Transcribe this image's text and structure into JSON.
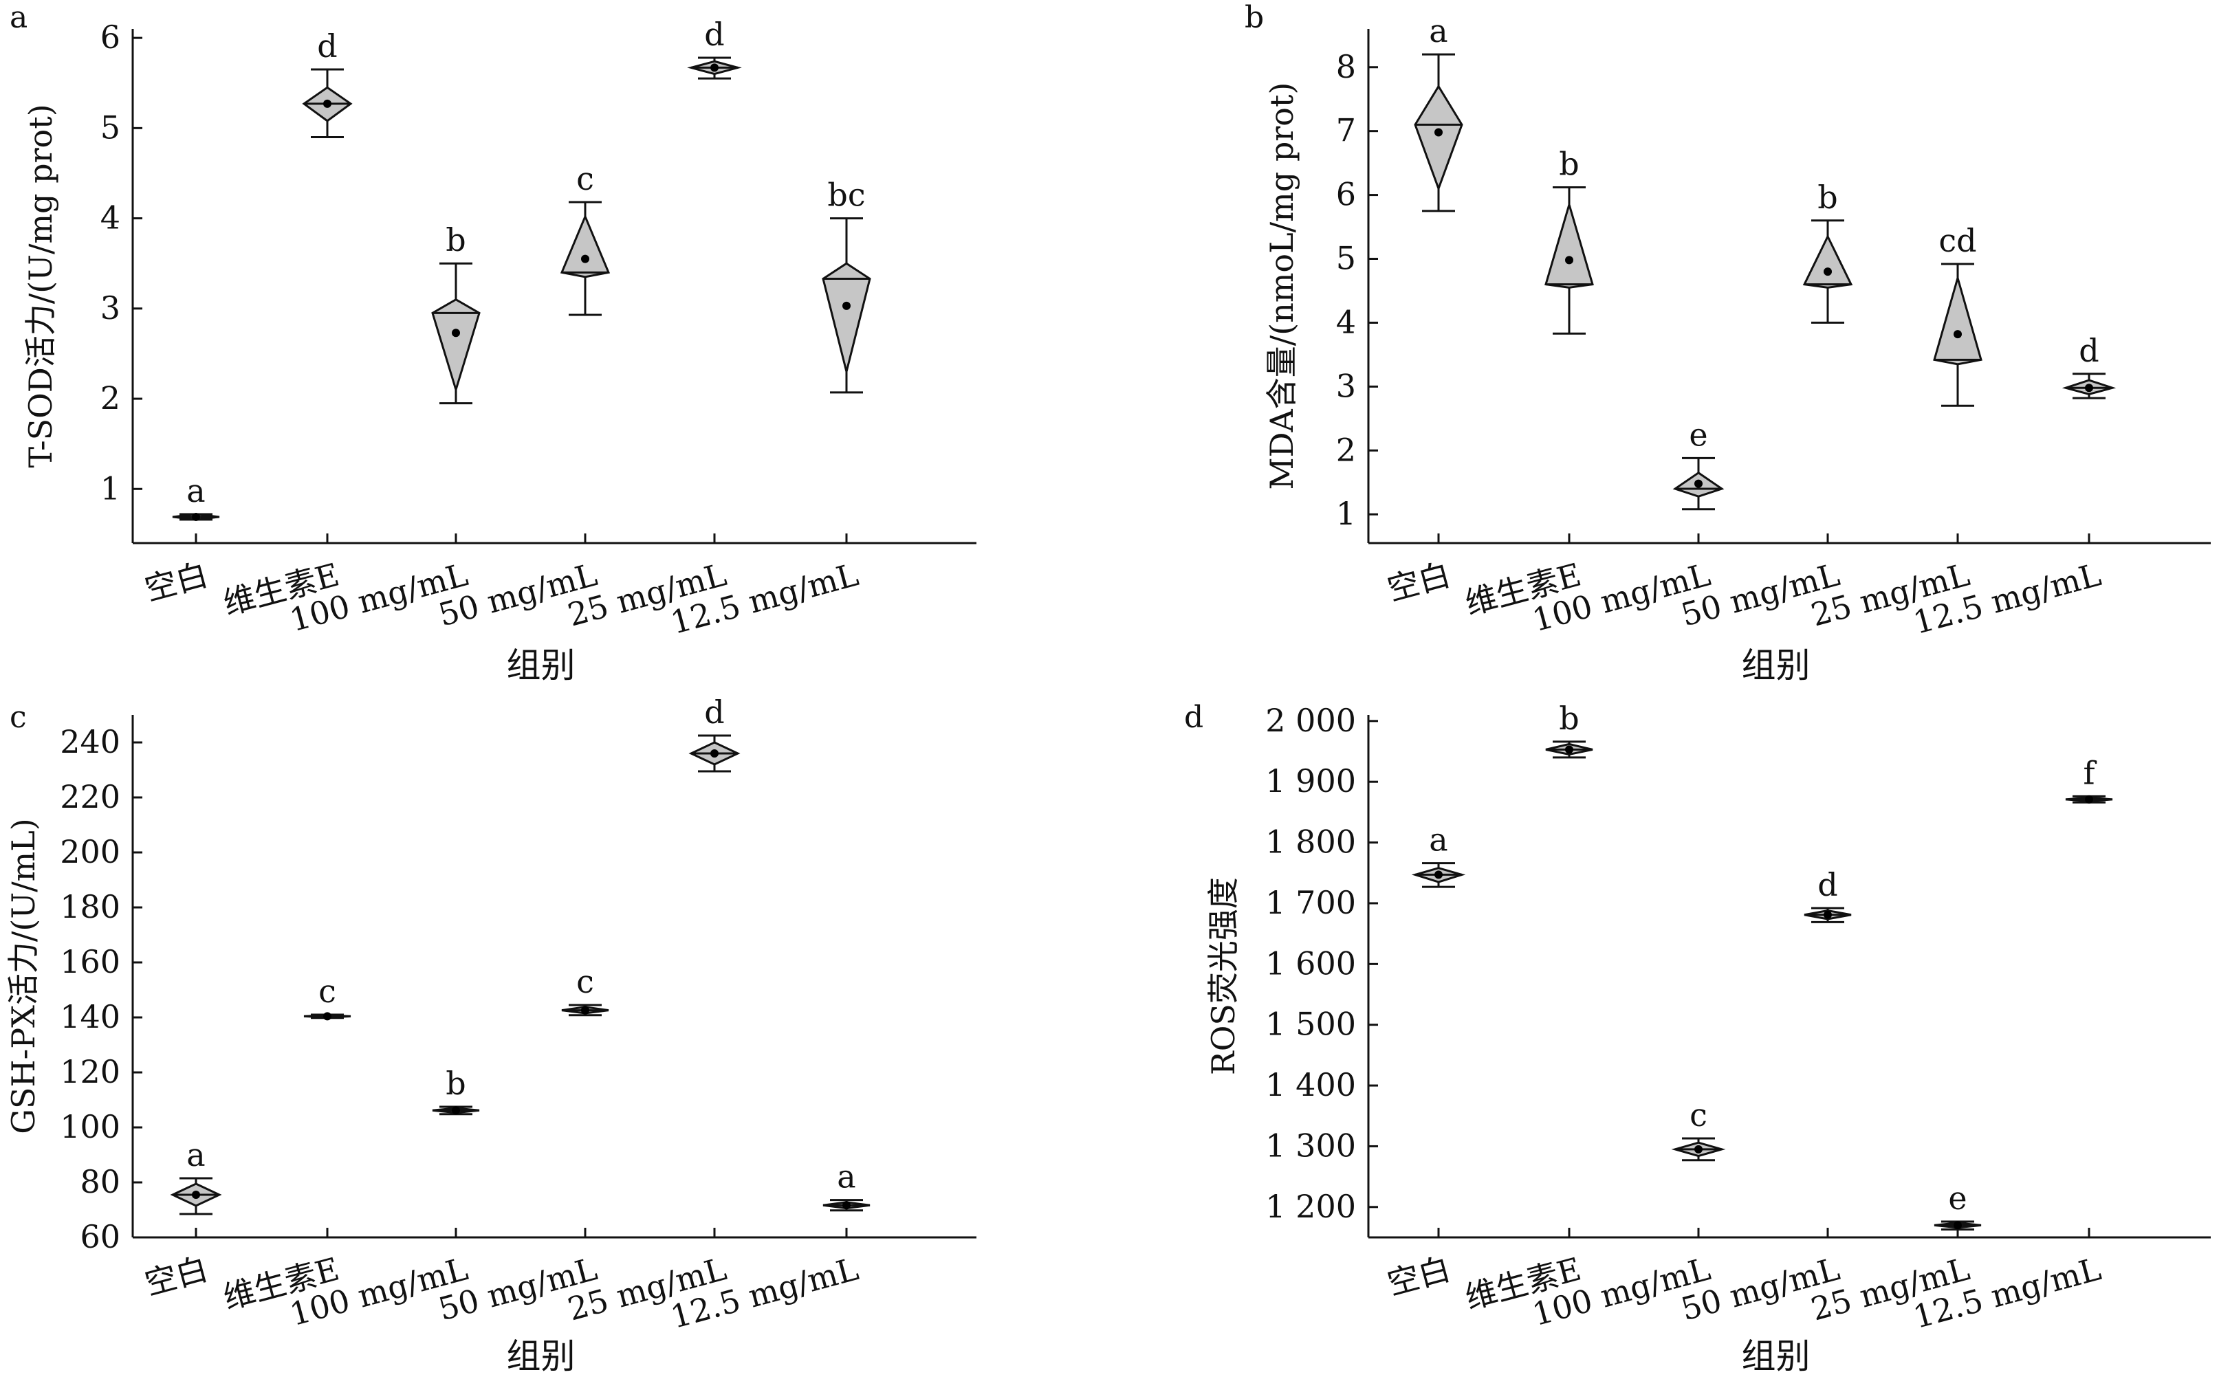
{
  "chart_data": [
    {
      "type": "violin",
      "panel": "a",
      "ylabel": "T-SOD活力/(U/mg prot)",
      "xlabel": "组别",
      "categories": [
        "空白",
        "维生素E",
        "100 mg/mL",
        "50 mg/mL",
        "25 mg/mL",
        "12.5 mg/mL"
      ],
      "ylim": [
        0.4,
        6.1
      ],
      "yticks": [
        {
          "v": 1,
          "t": "1"
        },
        {
          "v": 2,
          "t": "2"
        },
        {
          "v": 3,
          "t": "3"
        },
        {
          "v": 4,
          "t": "4"
        },
        {
          "v": 5,
          "t": "5"
        },
        {
          "v": 6,
          "t": "6"
        }
      ],
      "groups": [
        {
          "min": 0.66,
          "max": 0.72,
          "lo": 0.66,
          "hi": 0.72,
          "median": 0.69,
          "mean": 0.69,
          "sig": "a"
        },
        {
          "min": 4.9,
          "max": 5.65,
          "lo": 5.08,
          "hi": 5.45,
          "median": 5.27,
          "mean": 5.27,
          "sig": "d"
        },
        {
          "min": 1.95,
          "max": 3.5,
          "lo": 2.1,
          "hi": 3.1,
          "median": 2.95,
          "mean": 2.73,
          "sig": "b"
        },
        {
          "min": 2.93,
          "max": 4.18,
          "lo": 3.35,
          "hi": 4.02,
          "median": 3.4,
          "mean": 3.55,
          "sig": "c"
        },
        {
          "min": 5.55,
          "max": 5.78,
          "lo": 5.6,
          "hi": 5.74,
          "median": 5.67,
          "mean": 5.67,
          "sig": "d"
        },
        {
          "min": 2.07,
          "max": 4.0,
          "lo": 2.3,
          "hi": 3.5,
          "median": 3.33,
          "mean": 3.03,
          "sig": "bc"
        }
      ]
    },
    {
      "type": "violin",
      "panel": "b",
      "ylabel": "MDA含量/(nmoL/mg prot)",
      "xlabel": "组别",
      "categories": [
        "空白",
        "维生素E",
        "100 mg/mL",
        "50 mg/mL",
        "25 mg/mL",
        "12.5 mg/mL"
      ],
      "ylim": [
        0.55,
        8.6
      ],
      "yticks": [
        {
          "v": 1,
          "t": "1"
        },
        {
          "v": 2,
          "t": "2"
        },
        {
          "v": 3,
          "t": "3"
        },
        {
          "v": 4,
          "t": "4"
        },
        {
          "v": 5,
          "t": "5"
        },
        {
          "v": 6,
          "t": "6"
        },
        {
          "v": 7,
          "t": "7"
        },
        {
          "v": 8,
          "t": "8"
        }
      ],
      "groups": [
        {
          "min": 5.75,
          "max": 8.2,
          "lo": 6.1,
          "hi": 7.7,
          "median": 7.1,
          "mean": 6.98,
          "sig": "a"
        },
        {
          "min": 3.83,
          "max": 6.12,
          "lo": 4.55,
          "hi": 5.85,
          "median": 4.6,
          "mean": 4.98,
          "sig": "b"
        },
        {
          "min": 1.08,
          "max": 1.88,
          "lo": 1.28,
          "hi": 1.65,
          "median": 1.4,
          "mean": 1.48,
          "sig": "e"
        },
        {
          "min": 4.0,
          "max": 5.6,
          "lo": 4.55,
          "hi": 5.35,
          "median": 4.6,
          "mean": 4.8,
          "sig": "b"
        },
        {
          "min": 2.7,
          "max": 4.92,
          "lo": 3.35,
          "hi": 4.7,
          "median": 3.42,
          "mean": 3.82,
          "sig": "cd"
        },
        {
          "min": 2.82,
          "max": 3.2,
          "lo": 2.88,
          "hi": 3.1,
          "median": 2.98,
          "mean": 2.98,
          "sig": "d"
        }
      ]
    },
    {
      "type": "violin",
      "panel": "c",
      "ylabel": "GSH-PX活力/(U/mL)",
      "xlabel": "组别",
      "categories": [
        "空白",
        "维生素E",
        "100 mg/mL",
        "50 mg/mL",
        "25 mg/mL",
        "12.5 mg/mL"
      ],
      "ylim": [
        60,
        250
      ],
      "yticks": [
        {
          "v": 60,
          "t": "60"
        },
        {
          "v": 80,
          "t": "80"
        },
        {
          "v": 100,
          "t": "100"
        },
        {
          "v": 120,
          "t": "120"
        },
        {
          "v": 140,
          "t": "140"
        },
        {
          "v": 160,
          "t": "160"
        },
        {
          "v": 180,
          "t": "180"
        },
        {
          "v": 200,
          "t": "200"
        },
        {
          "v": 220,
          "t": "220"
        },
        {
          "v": 240,
          "t": "240"
        }
      ],
      "groups": [
        {
          "min": 68.5,
          "max": 81.5,
          "lo": 71.5,
          "hi": 79.5,
          "median": 75.5,
          "mean": 75.5,
          "sig": "a"
        },
        {
          "min": 139.8,
          "max": 141.0,
          "lo": 140.0,
          "hi": 140.8,
          "median": 140.4,
          "mean": 140.4,
          "sig": "c"
        },
        {
          "min": 104.8,
          "max": 107.5,
          "lo": 105.3,
          "hi": 107.0,
          "median": 106.2,
          "mean": 106.2,
          "sig": "b"
        },
        {
          "min": 140.8,
          "max": 144.5,
          "lo": 141.5,
          "hi": 143.8,
          "median": 142.6,
          "mean": 142.6,
          "sig": "c"
        },
        {
          "min": 229.5,
          "max": 242.5,
          "lo": 232.0,
          "hi": 240.0,
          "median": 236.0,
          "mean": 236.0,
          "sig": "d"
        },
        {
          "min": 69.8,
          "max": 73.6,
          "lo": 70.6,
          "hi": 72.8,
          "median": 71.7,
          "mean": 71.7,
          "sig": "a"
        }
      ]
    },
    {
      "type": "violin",
      "panel": "d",
      "ylabel": "ROS荧光强度",
      "xlabel": "组别",
      "categories": [
        "空白",
        "维生素E",
        "100 mg/mL",
        "50 mg/mL",
        "25 mg/mL",
        "12.5 mg/mL"
      ],
      "ylim": [
        1150,
        2010
      ],
      "yticks": [
        {
          "v": 1200,
          "t": "1 200"
        },
        {
          "v": 1300,
          "t": "1 300"
        },
        {
          "v": 1400,
          "t": "1 400"
        },
        {
          "v": 1500,
          "t": "1 500"
        },
        {
          "v": 1600,
          "t": "1 600"
        },
        {
          "v": 1700,
          "t": "1 700"
        },
        {
          "v": 1800,
          "t": "1 800"
        },
        {
          "v": 1900,
          "t": "1 900"
        },
        {
          "v": 2000,
          "t": "2 000"
        }
      ],
      "groups": [
        {
          "min": 1727,
          "max": 1766,
          "lo": 1735,
          "hi": 1758,
          "median": 1747,
          "mean": 1747,
          "sig": "a"
        },
        {
          "min": 1940,
          "max": 1966,
          "lo": 1945,
          "hi": 1962,
          "median": 1953,
          "mean": 1953,
          "sig": "b"
        },
        {
          "min": 1277,
          "max": 1313,
          "lo": 1284,
          "hi": 1306,
          "median": 1295,
          "mean": 1295,
          "sig": "c"
        },
        {
          "min": 1669,
          "max": 1692,
          "lo": 1674,
          "hi": 1688,
          "median": 1681,
          "mean": 1681,
          "sig": "d"
        },
        {
          "min": 1163,
          "max": 1176,
          "lo": 1166,
          "hi": 1174,
          "median": 1170,
          "mean": 1170,
          "sig": "e"
        },
        {
          "min": 1866,
          "max": 1876,
          "lo": 1868,
          "hi": 1874,
          "median": 1871,
          "mean": 1871,
          "sig": "f"
        }
      ]
    }
  ]
}
